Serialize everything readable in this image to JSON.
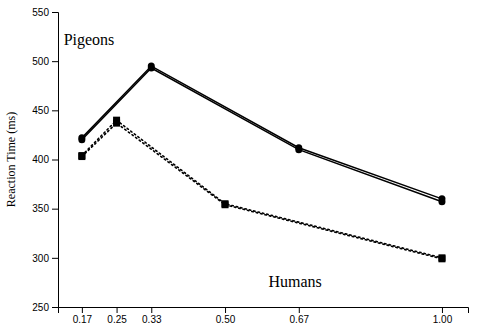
{
  "chart_data": {
    "type": "line",
    "ylabel": "Reaction Time (ms)",
    "series": [
      {
        "x": [
          0.17,
          0.33,
          0.67,
          1.0
        ],
        "values": [
          422,
          495,
          412,
          360
        ],
        "color": "#000000",
        "marker": "circle",
        "line_style": "solid"
      },
      {
        "x": [
          0.17,
          0.33,
          0.67,
          1.0
        ],
        "values": [
          420,
          493,
          410,
          357
        ],
        "color": "#000000",
        "marker": "circle",
        "line_style": "solid"
      },
      {
        "x": [
          0.17,
          0.25,
          0.5,
          1.0
        ],
        "values": [
          404,
          440,
          355,
          300
        ],
        "color": "#000000",
        "marker": "square",
        "line_style": "dotted"
      },
      {
        "x": [
          0.17,
          0.25,
          0.5,
          1.0
        ],
        "values": [
          403,
          437,
          354,
          299
        ],
        "color": "#000000",
        "marker": "square",
        "line_style": "dotted"
      }
    ],
    "annotations": [
      {
        "text": "Pigeons",
        "x": 0.128,
        "y": 516
      },
      {
        "text": "Humans",
        "x": 0.6,
        "y": 270
      }
    ],
    "xlim": [
      0.115,
      1.06
    ],
    "xticks": [
      0.17,
      0.25,
      0.33,
      {
        "value": 0.5,
        "label": "0.50"
      },
      0.67,
      {
        "value": 1.0,
        "label": "1.00"
      }
    ],
    "ylim": [
      250,
      550
    ],
    "yticks": [
      250,
      300,
      350,
      400,
      450,
      500,
      550
    ],
    "grid": false
  }
}
